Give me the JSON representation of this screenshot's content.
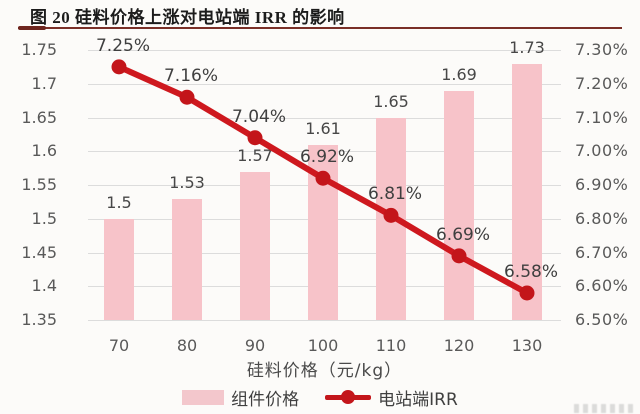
{
  "title": "图 20 硅料价格上涨对电站端 IRR 的影响",
  "colors": {
    "background": "#FCFBF9",
    "title_rule": "#7A2F27",
    "bar_fill": "#F7C3C9",
    "line": "#CE181E",
    "marker": "#C3151A",
    "legend_swatch": "#F3C7CC",
    "gridline": "#DCDCDC",
    "tick_label": "#595959",
    "data_label": "#3F3F3F"
  },
  "chart_data": {
    "type": "bar+line",
    "title": "图 20 硅料价格上涨对电站端 IRR 的影响",
    "categories": [
      "70",
      "80",
      "90",
      "100",
      "110",
      "120",
      "130"
    ],
    "series": [
      {
        "name": "组件价格",
        "type": "bar",
        "axis": "left",
        "values": [
          1.5,
          1.53,
          1.57,
          1.61,
          1.65,
          1.69,
          1.73
        ],
        "labels": [
          "1.5",
          "1.53",
          "1.57",
          "1.61",
          "1.65",
          "1.69",
          "1.73"
        ],
        "color": "#F7C3C9"
      },
      {
        "name": "电站端IRR",
        "type": "line",
        "axis": "right",
        "values": [
          7.25,
          7.16,
          7.04,
          6.92,
          6.81,
          6.69,
          6.58
        ],
        "labels": [
          "7.25%",
          "7.16%",
          "7.04%",
          "6.92%",
          "6.81%",
          "6.69%",
          "6.58%"
        ],
        "color": "#CE181E"
      }
    ],
    "xlabel": "硅料价格（元/kg）",
    "left_axis": {
      "min": 1.35,
      "max": 1.75,
      "ticks": [
        "1.75",
        "1.7",
        "1.65",
        "1.6",
        "1.55",
        "1.5",
        "1.45",
        "1.4",
        "1.35"
      ]
    },
    "right_axis": {
      "min": 6.5,
      "max": 7.3,
      "ticks": [
        "7.30%",
        "7.20%",
        "7.10%",
        "7.00%",
        "6.90%",
        "6.80%",
        "6.70%",
        "6.60%",
        "6.50%"
      ]
    },
    "grid": true,
    "legend_position": "bottom"
  }
}
